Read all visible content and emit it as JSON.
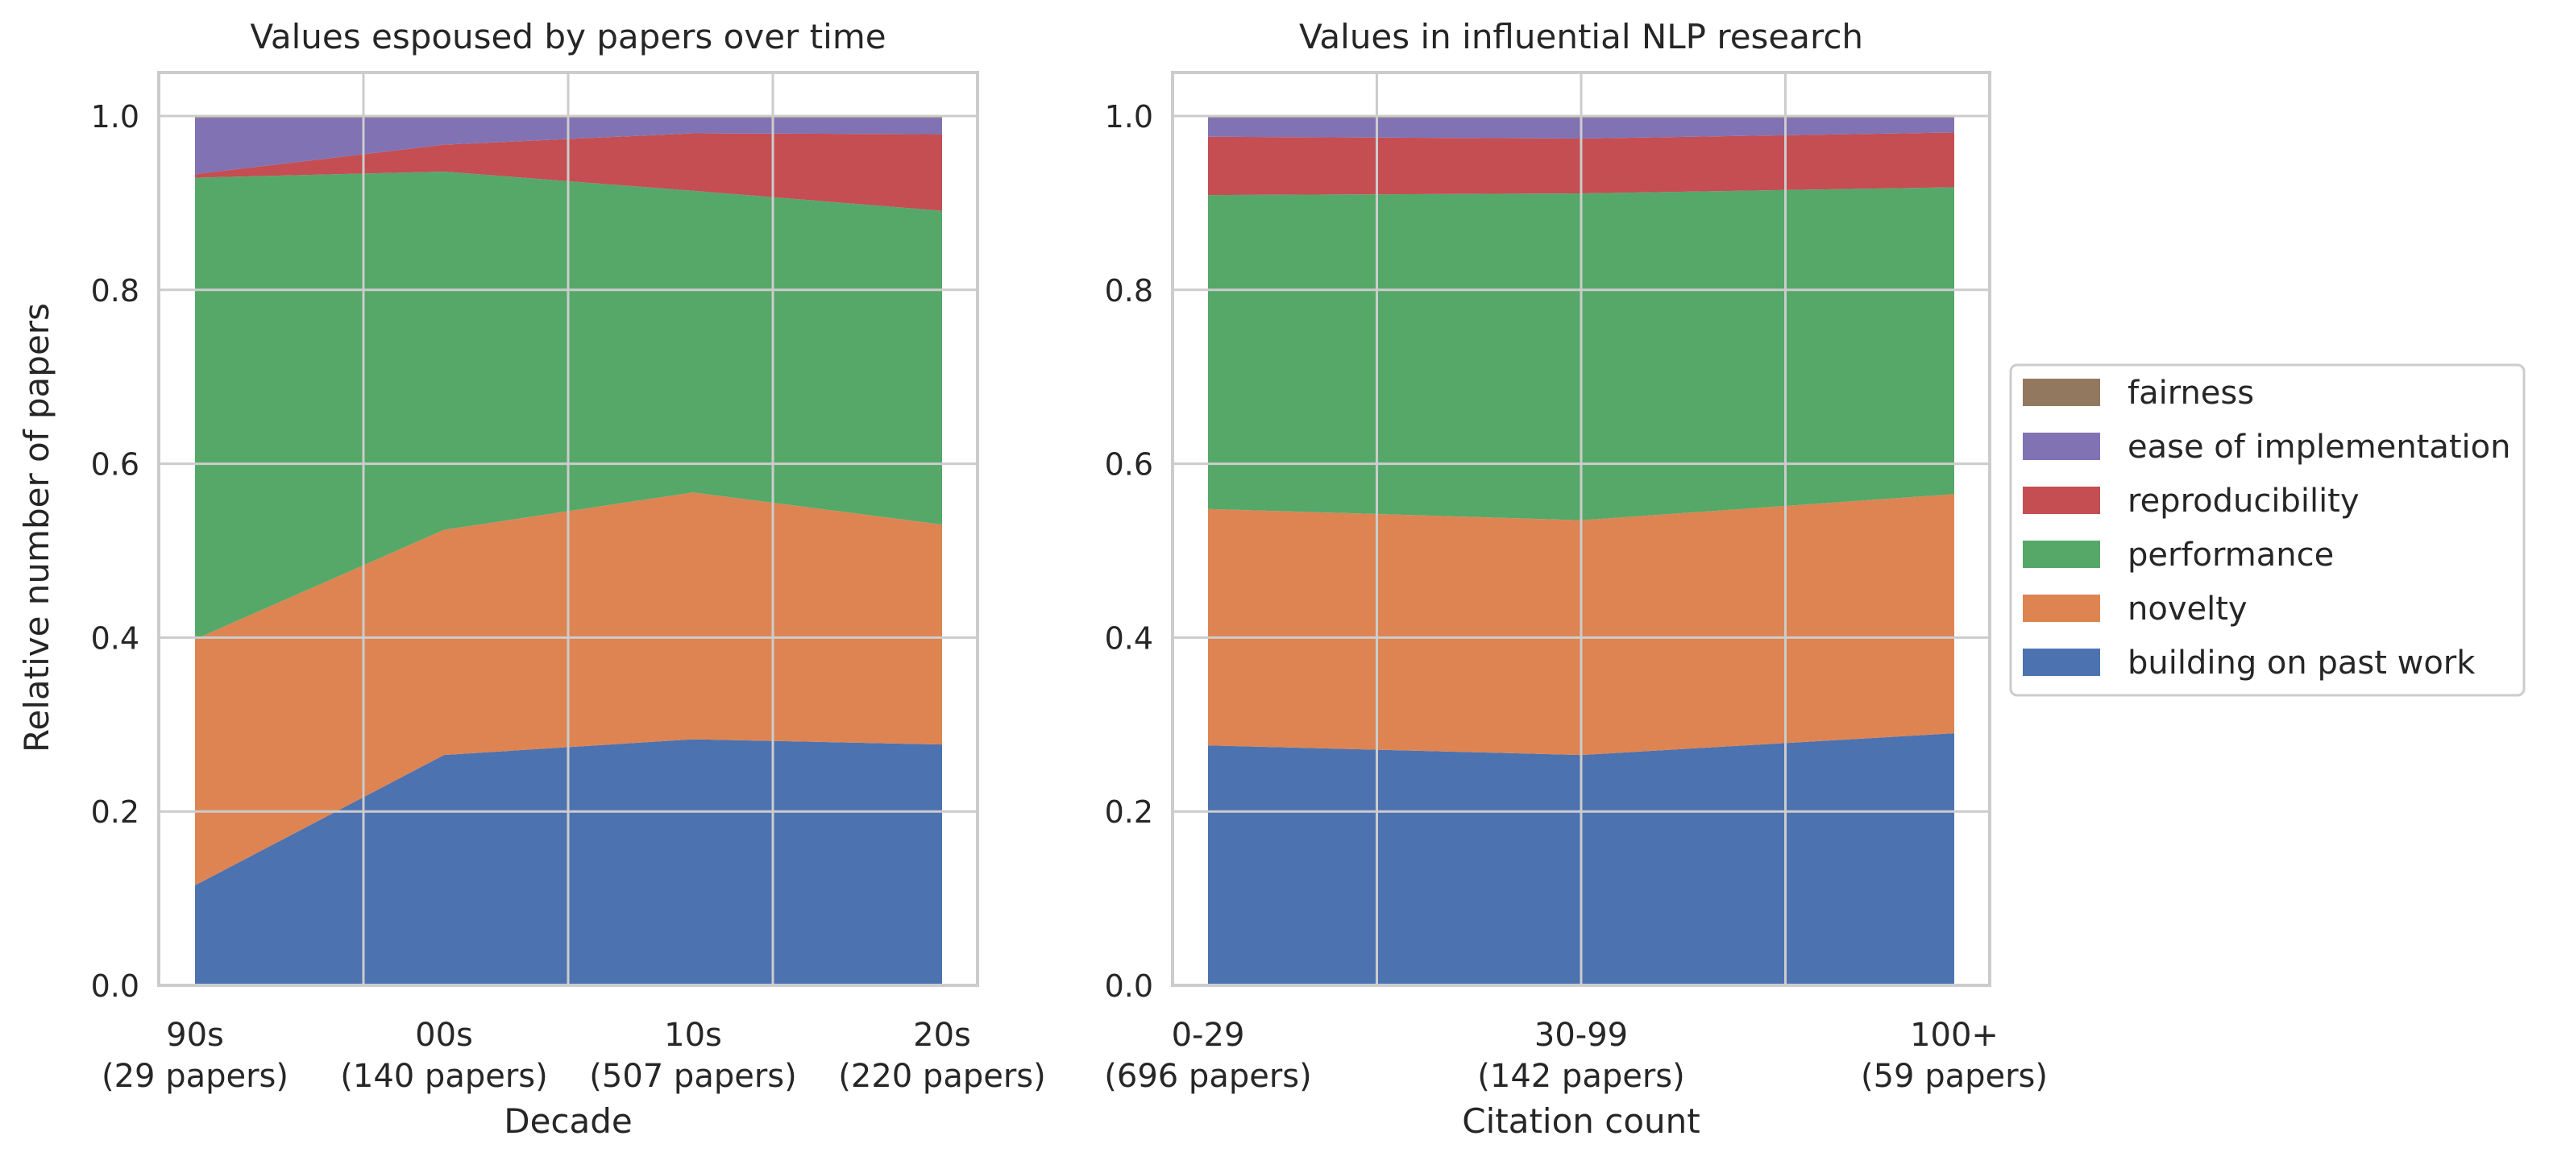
{
  "shared": {
    "ylabel": "Relative number of papers"
  },
  "series_colors": {
    "building on past work": "#4c72b0",
    "novelty": "#dd8452",
    "performance": "#55a868",
    "reproducibility": "#c44e52",
    "ease of implementation": "#8172b3",
    "fairness": "#937860"
  },
  "legend": {
    "placement": "center-right",
    "entries": [
      "fairness",
      "ease of implementation",
      "reproducibility",
      "performance",
      "novelty",
      "building on past work"
    ]
  },
  "chart_data": [
    {
      "type": "area",
      "stacked": true,
      "title": "Values espoused by papers over time",
      "xlabel": "Decade",
      "ylabel": "Relative number of papers",
      "ylim": [
        0,
        1.05
      ],
      "yticks": [
        "0.0",
        "0.2",
        "0.4",
        "0.6",
        "0.8",
        "1.0"
      ],
      "grid": true,
      "categories": [
        [
          "90s",
          "(29 papers)"
        ],
        [
          "00s",
          "(140 papers)"
        ],
        [
          "10s",
          "(507 papers)"
        ],
        [
          "20s",
          "(220 papers)"
        ]
      ],
      "series": [
        {
          "name": "building on past work",
          "values": [
            0.115,
            0.265,
            0.283,
            0.277
          ]
        },
        {
          "name": "novelty",
          "values": [
            0.283,
            0.259,
            0.284,
            0.253
          ]
        },
        {
          "name": "performance",
          "values": [
            0.531,
            0.412,
            0.347,
            0.361
          ]
        },
        {
          "name": "reproducibility",
          "values": [
            0.004,
            0.031,
            0.066,
            0.088
          ]
        },
        {
          "name": "ease of implementation",
          "values": [
            0.065,
            0.031,
            0.018,
            0.019
          ]
        },
        {
          "name": "fairness",
          "values": [
            0.002,
            0.002,
            0.002,
            0.002
          ]
        }
      ]
    },
    {
      "type": "area",
      "stacked": true,
      "title": "Values in influential NLP research",
      "xlabel": "Citation count",
      "ylabel": "",
      "ylim": [
        0,
        1.05
      ],
      "yticks": [
        "0.0",
        "0.2",
        "0.4",
        "0.6",
        "0.8",
        "1.0"
      ],
      "grid": true,
      "categories": [
        [
          "0-29",
          "(696 papers)"
        ],
        [
          "30-99",
          "(142 papers)"
        ],
        [
          "100+",
          "(59 papers)"
        ]
      ],
      "series": [
        {
          "name": "building on past work",
          "values": [
            0.276,
            0.265,
            0.29
          ]
        },
        {
          "name": "novelty",
          "values": [
            0.272,
            0.27,
            0.275
          ]
        },
        {
          "name": "performance",
          "values": [
            0.361,
            0.376,
            0.353
          ]
        },
        {
          "name": "reproducibility",
          "values": [
            0.067,
            0.063,
            0.063
          ]
        },
        {
          "name": "ease of implementation",
          "values": [
            0.022,
            0.024,
            0.017
          ]
        },
        {
          "name": "fairness",
          "values": [
            0.002,
            0.002,
            0.002
          ]
        }
      ]
    }
  ]
}
